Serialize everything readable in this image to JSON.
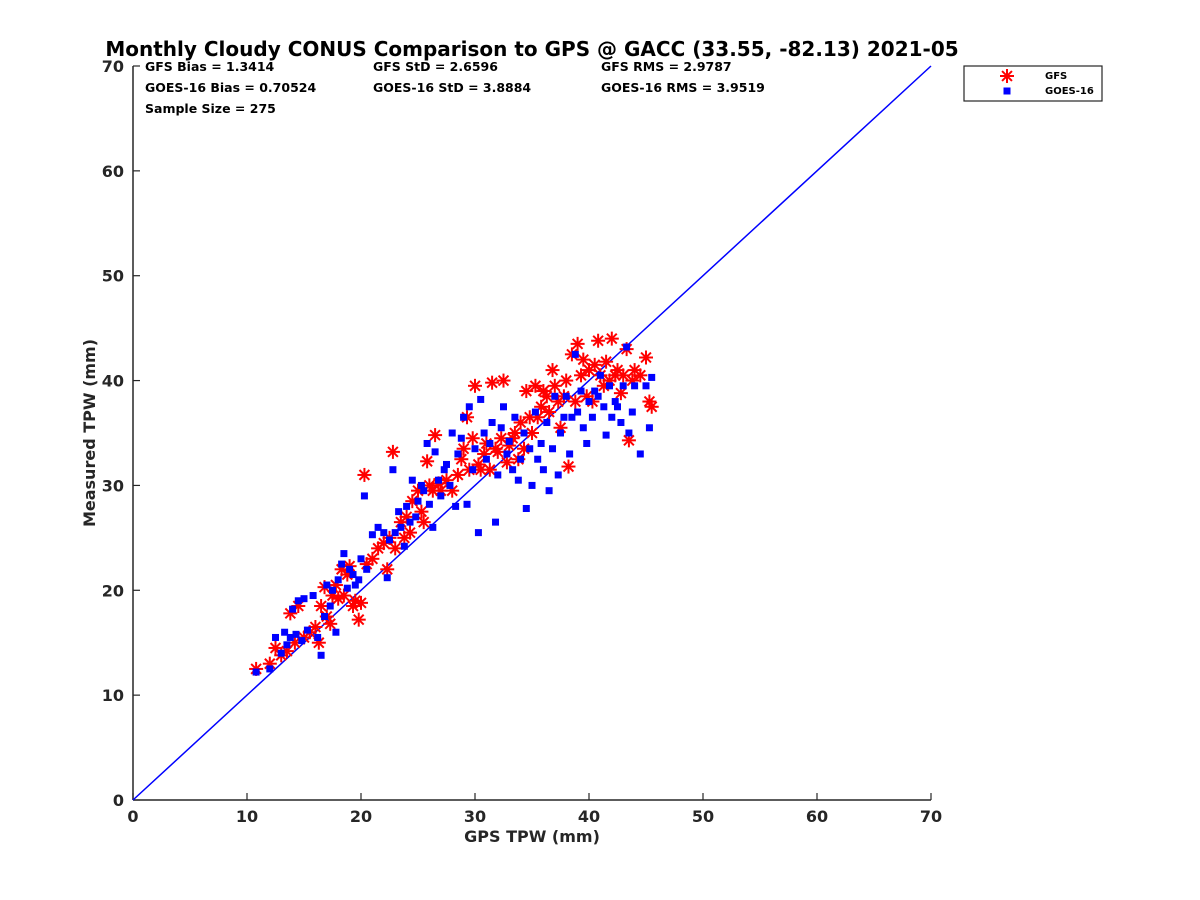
{
  "chart_data": {
    "type": "scatter",
    "title": "Monthly Cloudy CONUS Comparison to GPS @ GACC (33.55, -82.13) 2021-05",
    "xlabel": "GPS TPW (mm)",
    "ylabel": "Measured TPW (mm)",
    "xlim": [
      0,
      70
    ],
    "ylim": [
      0,
      70
    ],
    "xticks": [
      0,
      10,
      20,
      30,
      40,
      50,
      60,
      70
    ],
    "yticks": [
      0,
      10,
      20,
      30,
      40,
      50,
      60,
      70
    ],
    "grid": false,
    "legend_position": "top-right outside",
    "stats": [
      {
        "text": "GFS Bias = 1.3414"
      },
      {
        "text": "GFS StD = 2.6596"
      },
      {
        "text": "GFS RMS = 2.9787"
      },
      {
        "text": "GOES-16 Bias = 0.70524"
      },
      {
        "text": "GOES-16 StD = 3.8884"
      },
      {
        "text": "GOES-16 RMS = 3.9519"
      },
      {
        "text": "Sample Size = 275"
      }
    ],
    "reference_line": {
      "x": [
        0,
        70
      ],
      "y": [
        0,
        70
      ],
      "color": "#0000ff"
    },
    "series": [
      {
        "name": "GFS",
        "marker": "asterisk",
        "color": "#ff0000",
        "points": [
          [
            10.8,
            12.5
          ],
          [
            12.0,
            13.0
          ],
          [
            12.5,
            14.5
          ],
          [
            13.0,
            13.8
          ],
          [
            13.5,
            14.2
          ],
          [
            13.8,
            17.8
          ],
          [
            14.2,
            15.0
          ],
          [
            14.5,
            18.5
          ],
          [
            15.0,
            15.5
          ],
          [
            15.5,
            16.0
          ],
          [
            16.0,
            16.5
          ],
          [
            16.3,
            15.0
          ],
          [
            16.5,
            18.5
          ],
          [
            16.8,
            20.3
          ],
          [
            17.0,
            17.5
          ],
          [
            17.3,
            16.8
          ],
          [
            17.5,
            19.5
          ],
          [
            17.8,
            20.5
          ],
          [
            18.0,
            19.2
          ],
          [
            18.3,
            22.0
          ],
          [
            18.5,
            19.5
          ],
          [
            18.8,
            21.5
          ],
          [
            19.0,
            22.3
          ],
          [
            19.3,
            18.5
          ],
          [
            19.5,
            19.0
          ],
          [
            19.8,
            17.2
          ],
          [
            20.0,
            18.8
          ],
          [
            20.3,
            31.0
          ],
          [
            20.5,
            22.5
          ],
          [
            21.0,
            23.0
          ],
          [
            21.5,
            24.0
          ],
          [
            22.0,
            24.5
          ],
          [
            22.3,
            22.0
          ],
          [
            22.5,
            25.0
          ],
          [
            22.8,
            33.2
          ],
          [
            23.0,
            24.0
          ],
          [
            23.5,
            26.5
          ],
          [
            23.8,
            25.0
          ],
          [
            24.0,
            27.0
          ],
          [
            24.3,
            25.5
          ],
          [
            24.5,
            28.5
          ],
          [
            25.0,
            29.5
          ],
          [
            25.3,
            27.5
          ],
          [
            25.5,
            26.5
          ],
          [
            25.8,
            32.3
          ],
          [
            26.0,
            30.0
          ],
          [
            26.3,
            29.5
          ],
          [
            26.5,
            34.8
          ],
          [
            26.8,
            30.2
          ],
          [
            27.0,
            29.5
          ],
          [
            27.5,
            30.5
          ],
          [
            28.0,
            29.5
          ],
          [
            28.5,
            31.0
          ],
          [
            28.8,
            32.5
          ],
          [
            29.0,
            33.5
          ],
          [
            29.3,
            36.5
          ],
          [
            29.5,
            31.5
          ],
          [
            29.8,
            34.5
          ],
          [
            30.0,
            39.5
          ],
          [
            30.3,
            32.0
          ],
          [
            30.5,
            31.5
          ],
          [
            30.8,
            33.0
          ],
          [
            31.0,
            34.0
          ],
          [
            31.3,
            31.5
          ],
          [
            31.5,
            39.8
          ],
          [
            31.8,
            33.5
          ],
          [
            32.0,
            33.2
          ],
          [
            32.3,
            34.5
          ],
          [
            32.5,
            40.0
          ],
          [
            32.8,
            32.2
          ],
          [
            33.0,
            33.8
          ],
          [
            33.3,
            34.5
          ],
          [
            33.5,
            35.0
          ],
          [
            33.8,
            32.5
          ],
          [
            34.0,
            36.0
          ],
          [
            34.3,
            33.5
          ],
          [
            34.5,
            39.0
          ],
          [
            34.8,
            36.5
          ],
          [
            35.0,
            35.0
          ],
          [
            35.3,
            39.5
          ],
          [
            35.5,
            36.5
          ],
          [
            35.8,
            37.5
          ],
          [
            36.0,
            39.0
          ],
          [
            36.3,
            38.5
          ],
          [
            36.5,
            37.0
          ],
          [
            36.8,
            41.0
          ],
          [
            37.0,
            39.5
          ],
          [
            37.3,
            38.0
          ],
          [
            37.5,
            35.5
          ],
          [
            37.8,
            38.5
          ],
          [
            38.0,
            40.0
          ],
          [
            38.2,
            31.8
          ],
          [
            38.5,
            42.5
          ],
          [
            38.8,
            38.0
          ],
          [
            39.0,
            43.5
          ],
          [
            39.3,
            40.5
          ],
          [
            39.5,
            42.0
          ],
          [
            39.8,
            38.5
          ],
          [
            40.0,
            41.0
          ],
          [
            40.3,
            38.0
          ],
          [
            40.5,
            41.5
          ],
          [
            40.8,
            43.8
          ],
          [
            41.0,
            40.5
          ],
          [
            41.3,
            39.5
          ],
          [
            41.5,
            41.8
          ],
          [
            41.8,
            40.0
          ],
          [
            42.0,
            44.0
          ],
          [
            42.3,
            40.5
          ],
          [
            42.5,
            41.0
          ],
          [
            42.8,
            38.8
          ],
          [
            43.0,
            40.5
          ],
          [
            43.3,
            43.0
          ],
          [
            43.5,
            34.3
          ],
          [
            43.8,
            40.0
          ],
          [
            44.0,
            41.0
          ],
          [
            44.5,
            40.5
          ],
          [
            45.0,
            42.2
          ],
          [
            45.3,
            38.0
          ],
          [
            45.5,
            37.5
          ]
        ]
      },
      {
        "name": "GOES-16",
        "marker": "square",
        "color": "#0000ff",
        "points": [
          [
            10.8,
            12.2
          ],
          [
            12.0,
            12.5
          ],
          [
            12.5,
            15.5
          ],
          [
            13.0,
            14.0
          ],
          [
            13.3,
            16.0
          ],
          [
            13.5,
            14.8
          ],
          [
            13.8,
            15.5
          ],
          [
            14.0,
            18.2
          ],
          [
            14.3,
            15.8
          ],
          [
            14.5,
            19.0
          ],
          [
            14.8,
            15.2
          ],
          [
            15.0,
            19.2
          ],
          [
            15.3,
            16.2
          ],
          [
            15.8,
            19.5
          ],
          [
            16.2,
            15.5
          ],
          [
            16.5,
            13.8
          ],
          [
            16.8,
            17.5
          ],
          [
            17.0,
            20.5
          ],
          [
            17.3,
            18.5
          ],
          [
            17.5,
            20.0
          ],
          [
            17.8,
            16.0
          ],
          [
            18.0,
            21.0
          ],
          [
            18.3,
            22.5
          ],
          [
            18.5,
            23.5
          ],
          [
            18.8,
            20.2
          ],
          [
            19.0,
            22.0
          ],
          [
            19.3,
            21.5
          ],
          [
            19.5,
            20.5
          ],
          [
            19.8,
            21.0
          ],
          [
            20.0,
            23.0
          ],
          [
            20.3,
            29.0
          ],
          [
            20.5,
            22.0
          ],
          [
            21.0,
            25.3
          ],
          [
            21.5,
            26.0
          ],
          [
            22.0,
            25.5
          ],
          [
            22.3,
            21.2
          ],
          [
            22.5,
            24.8
          ],
          [
            22.8,
            31.5
          ],
          [
            23.0,
            25.5
          ],
          [
            23.3,
            27.5
          ],
          [
            23.5,
            26.0
          ],
          [
            23.8,
            24.2
          ],
          [
            24.0,
            28.0
          ],
          [
            24.3,
            26.5
          ],
          [
            24.5,
            30.5
          ],
          [
            24.8,
            27.0
          ],
          [
            25.0,
            28.5
          ],
          [
            25.3,
            30.0
          ],
          [
            25.5,
            29.5
          ],
          [
            25.8,
            34.0
          ],
          [
            26.0,
            28.2
          ],
          [
            26.3,
            26.0
          ],
          [
            26.5,
            33.2
          ],
          [
            26.8,
            30.5
          ],
          [
            27.0,
            29.0
          ],
          [
            27.3,
            31.5
          ],
          [
            27.5,
            32.0
          ],
          [
            27.8,
            30.0
          ],
          [
            28.0,
            35.0
          ],
          [
            28.3,
            28.0
          ],
          [
            28.5,
            33.0
          ],
          [
            28.8,
            34.5
          ],
          [
            29.0,
            36.5
          ],
          [
            29.3,
            28.2
          ],
          [
            29.5,
            37.5
          ],
          [
            29.8,
            31.5
          ],
          [
            30.0,
            33.5
          ],
          [
            30.3,
            25.5
          ],
          [
            30.5,
            38.2
          ],
          [
            30.8,
            35.0
          ],
          [
            31.0,
            32.5
          ],
          [
            31.3,
            34.0
          ],
          [
            31.5,
            36.0
          ],
          [
            31.8,
            26.5
          ],
          [
            32.0,
            31.0
          ],
          [
            32.3,
            35.5
          ],
          [
            32.5,
            37.5
          ],
          [
            32.8,
            33.0
          ],
          [
            33.0,
            34.2
          ],
          [
            33.3,
            31.5
          ],
          [
            33.5,
            36.5
          ],
          [
            33.8,
            30.5
          ],
          [
            34.0,
            32.5
          ],
          [
            34.3,
            35.0
          ],
          [
            34.5,
            27.8
          ],
          [
            34.8,
            33.5
          ],
          [
            35.0,
            30.0
          ],
          [
            35.3,
            37.0
          ],
          [
            35.5,
            32.5
          ],
          [
            35.8,
            34.0
          ],
          [
            36.0,
            31.5
          ],
          [
            36.3,
            36.0
          ],
          [
            36.5,
            29.5
          ],
          [
            36.8,
            33.5
          ],
          [
            37.0,
            38.5
          ],
          [
            37.3,
            31.0
          ],
          [
            37.5,
            35.0
          ],
          [
            37.8,
            36.5
          ],
          [
            38.0,
            38.5
          ],
          [
            38.3,
            33.0
          ],
          [
            38.5,
            36.5
          ],
          [
            38.8,
            42.5
          ],
          [
            39.0,
            37.0
          ],
          [
            39.3,
            39.0
          ],
          [
            39.5,
            35.5
          ],
          [
            39.8,
            34.0
          ],
          [
            40.0,
            38.0
          ],
          [
            40.3,
            36.5
          ],
          [
            40.5,
            39.0
          ],
          [
            40.8,
            38.5
          ],
          [
            41.0,
            40.5
          ],
          [
            41.3,
            37.5
          ],
          [
            41.5,
            34.8
          ],
          [
            41.8,
            39.5
          ],
          [
            42.0,
            36.5
          ],
          [
            42.3,
            38.0
          ],
          [
            42.5,
            37.5
          ],
          [
            42.8,
            36.0
          ],
          [
            43.0,
            39.5
          ],
          [
            43.3,
            43.2
          ],
          [
            43.5,
            35.0
          ],
          [
            43.8,
            37.0
          ],
          [
            44.0,
            39.5
          ],
          [
            44.5,
            33.0
          ],
          [
            45.0,
            39.5
          ],
          [
            45.3,
            35.5
          ],
          [
            45.5,
            40.3
          ]
        ]
      }
    ]
  }
}
